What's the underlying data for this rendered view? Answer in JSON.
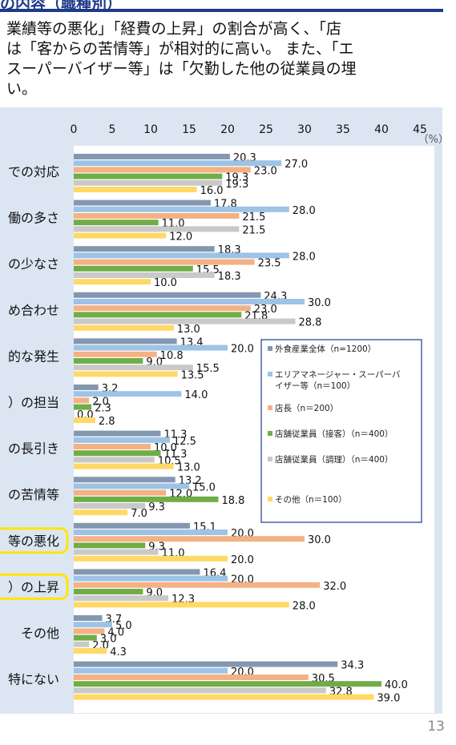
{
  "header": {
    "title": "の内容（職種別）"
  },
  "intro_lines": [
    "業績等の悪化」「経費の上昇」の割合が高く、「店",
    "は「客からの苦情等」が相対的に高い。 また、「エ",
    "スーパーバイザー等」は「欠勤した他の従業員の埋",
    "い。"
  ],
  "page_number": "13",
  "chart_data": {
    "type": "bar",
    "orientation": "horizontal",
    "unit": "（%）",
    "xlim": [
      0,
      45
    ],
    "ticks": [
      "0",
      "5",
      "10",
      "15",
      "20",
      "25",
      "30",
      "35",
      "40",
      "45"
    ],
    "categories": [
      "での対応",
      "働の多さ",
      "の少なさ",
      "め合わせ",
      "的な発生",
      "）の担当",
      "の長引き",
      "の苦情等",
      "等の悪化",
      "）の上昇",
      "その他",
      "特にない"
    ],
    "highlighted": [
      "等の悪化",
      "）の上昇"
    ],
    "series": [
      {
        "name": "外食産業全体（n=1200）",
        "color": "#8497b0",
        "values": [
          20.3,
          17.8,
          18.3,
          24.3,
          13.4,
          3.2,
          11.3,
          13.2,
          15.1,
          16.4,
          3.7,
          34.3
        ]
      },
      {
        "name": "エリアマネージャー・スーパーバイザー等（n＝100）",
        "color": "#9dc3e6",
        "values": [
          27.0,
          28.0,
          28.0,
          30.0,
          20.0,
          14.0,
          12.5,
          15.0,
          20.0,
          20.0,
          5.0,
          20.0
        ]
      },
      {
        "name": "店長（n＝200）",
        "color": "#f4b183",
        "values": [
          23.0,
          21.5,
          23.5,
          23.0,
          10.8,
          2.0,
          10.0,
          12.0,
          30.0,
          32.0,
          4.0,
          30.5
        ]
      },
      {
        "name": "店舗従業員（接客）（n＝400）",
        "color": "#70ad47",
        "values": [
          19.3,
          11.0,
          15.5,
          21.8,
          9.0,
          2.3,
          11.3,
          18.8,
          9.3,
          9.0,
          3.0,
          40.0
        ]
      },
      {
        "name": "店舗従業員（調理）（n＝400）",
        "color": "#c9c9c9",
        "values": [
          19.3,
          21.5,
          18.3,
          28.8,
          15.5,
          0.0,
          10.5,
          9.3,
          11.0,
          12.3,
          2.0,
          32.8
        ]
      },
      {
        "name": "その他（n＝100）",
        "color": "#ffd966",
        "values": [
          16.0,
          12.0,
          10.0,
          13.0,
          13.5,
          2.8,
          13.0,
          7.0,
          20.0,
          28.0,
          4.3,
          39.0
        ]
      }
    ],
    "legend_position": "right-middle"
  }
}
